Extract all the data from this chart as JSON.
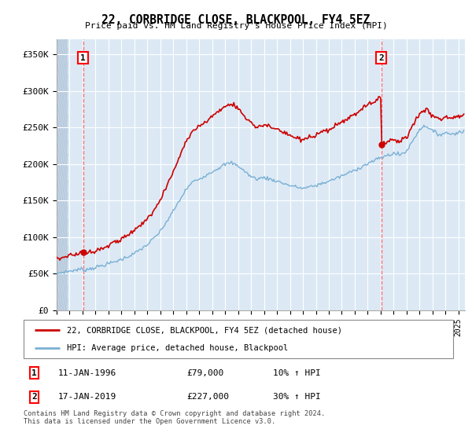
{
  "title": "22, CORBRIDGE CLOSE, BLACKPOOL, FY4 5EZ",
  "subtitle": "Price paid vs. HM Land Registry's House Price Index (HPI)",
  "ylim": [
    0,
    370000
  ],
  "yticks": [
    0,
    50000,
    100000,
    150000,
    200000,
    250000,
    300000,
    350000
  ],
  "ytick_labels": [
    "£0",
    "£50K",
    "£100K",
    "£150K",
    "£200K",
    "£250K",
    "£300K",
    "£350K"
  ],
  "xlim_start": 1994.0,
  "xlim_end": 2025.5,
  "sale1_date": 1996.04,
  "sale1_price": 79000,
  "sale2_date": 2019.04,
  "sale2_price": 227000,
  "legend_line1": "22, CORBRIDGE CLOSE, BLACKPOOL, FY4 5EZ (detached house)",
  "legend_line2": "HPI: Average price, detached house, Blackpool",
  "footer": "Contains HM Land Registry data © Crown copyright and database right 2024.\nThis data is licensed under the Open Government Licence v3.0.",
  "line_color_price": "#cc0000",
  "line_color_hpi": "#7ab0d4",
  "plot_bg_color": "#dce9f5",
  "hatch_bg_color": "#c8d8e8"
}
